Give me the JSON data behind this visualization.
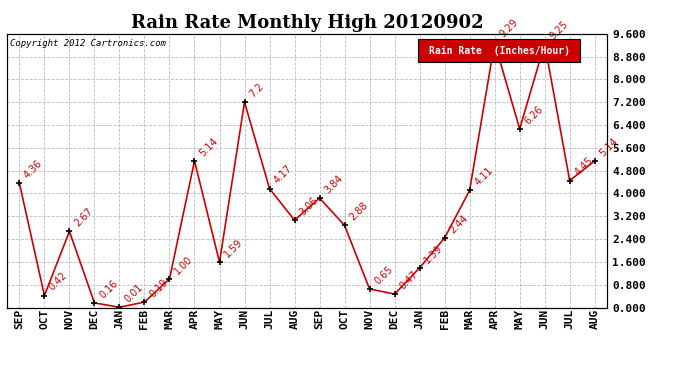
{
  "title": "Rain Rate Monthly High 20120902",
  "copyright": "Copyright 2012 Cartronics.com",
  "legend_label": "Rain Rate  (Inches/Hour)",
  "categories": [
    "SEP",
    "OCT",
    "NOV",
    "DEC",
    "JAN",
    "FEB",
    "MAR",
    "APR",
    "MAY",
    "JUN",
    "JUL",
    "AUG",
    "SEP",
    "OCT",
    "NOV",
    "DEC",
    "JAN",
    "FEB",
    "MAR",
    "APR",
    "MAY",
    "JUN",
    "JUL",
    "AUG"
  ],
  "values": [
    4.36,
    0.42,
    2.67,
    0.16,
    0.01,
    0.19,
    1.0,
    5.14,
    1.59,
    7.2,
    4.17,
    3.06,
    3.84,
    2.88,
    0.65,
    0.47,
    1.39,
    2.44,
    4.11,
    9.29,
    6.26,
    9.25,
    4.45,
    5.14
  ],
  "line_color": "#cc0000",
  "marker_color": "#000000",
  "background_color": "#ffffff",
  "grid_color": "#bbbbbb",
  "legend_bg": "#cc0000",
  "legend_text_color": "#ffffff",
  "title_fontsize": 13,
  "label_fontsize": 8,
  "annotation_fontsize": 7,
  "ymin": 0.0,
  "ymax": 9.6,
  "yticks": [
    0.0,
    0.8,
    1.6,
    2.4,
    3.2,
    4.0,
    4.8,
    5.6,
    6.4,
    7.2,
    8.0,
    8.8,
    9.6
  ]
}
